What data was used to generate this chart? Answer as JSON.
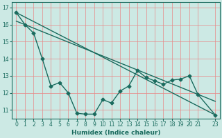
{
  "xlabel": "Humidex (Indice chaleur)",
  "bg_color": "#cce9e4",
  "line_color": "#1a6b5e",
  "grid_color": "#e88888",
  "xlim": [
    -0.5,
    23.5
  ],
  "ylim": [
    10.5,
    17.3
  ],
  "yticks": [
    11,
    12,
    13,
    14,
    15,
    16,
    17
  ],
  "xticks": [
    0,
    1,
    2,
    3,
    4,
    5,
    6,
    7,
    8,
    9,
    10,
    11,
    12,
    13,
    14,
    15,
    16,
    17,
    18,
    19,
    20,
    21,
    23
  ],
  "line1_x": [
    0,
    1,
    2,
    3,
    4,
    5,
    6,
    7,
    8,
    9,
    10,
    11,
    12,
    13,
    14,
    15,
    16,
    17,
    18,
    19,
    20,
    21,
    23
  ],
  "line1_y": [
    16.7,
    16.0,
    15.5,
    14.0,
    12.4,
    12.6,
    12.0,
    10.8,
    10.75,
    10.75,
    11.6,
    11.4,
    12.1,
    12.4,
    13.3,
    12.9,
    12.7,
    12.5,
    12.75,
    12.8,
    13.0,
    11.9,
    10.7
  ],
  "line2_x": [
    0,
    23
  ],
  "line2_y": [
    16.7,
    10.7
  ],
  "line3_x": [
    0,
    23
  ],
  "line3_y": [
    16.2,
    11.5
  ],
  "marker": "D",
  "markersize": 2.5,
  "linewidth": 1.0
}
